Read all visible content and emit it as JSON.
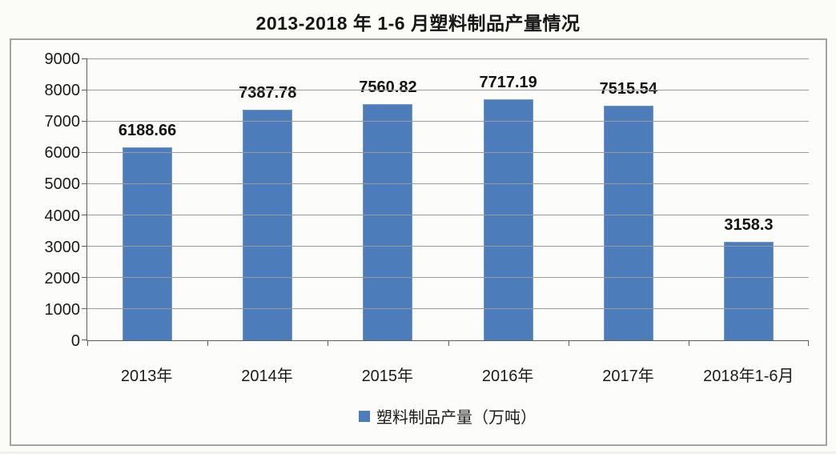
{
  "title": "2013-2018 年 1-6 月塑料制品产量情况",
  "legend": {
    "label": "塑料制品产量（万吨）",
    "color": "#4d7cba"
  },
  "chart_data": {
    "type": "bar",
    "title": "2013-2018 年 1-6 月塑料制品产量情况",
    "categories": [
      "2013年",
      "2014年",
      "2015年",
      "2016年",
      "2017年",
      "2018年1-6月"
    ],
    "values": [
      6188.66,
      7387.78,
      7560.82,
      7717.19,
      7515.54,
      3158.3
    ],
    "data_labels": [
      "6188.66",
      "7387.78",
      "7560.82",
      "7717.19",
      "7515.54",
      "3158.3"
    ],
    "series": [
      {
        "name": "塑料制品产量（万吨）",
        "values": [
          6188.66,
          7387.78,
          7560.82,
          7717.19,
          7515.54,
          3158.3
        ]
      }
    ],
    "xlabel": "",
    "ylabel": "",
    "ylim": [
      0,
      9000
    ],
    "ytick_step": 1000,
    "yticks": [
      0,
      1000,
      2000,
      3000,
      4000,
      5000,
      6000,
      7000,
      8000,
      9000
    ],
    "grid": true,
    "legend_position": "bottom",
    "bar_color": "#4d7cba",
    "gridline_color": "#9b9b9b"
  }
}
